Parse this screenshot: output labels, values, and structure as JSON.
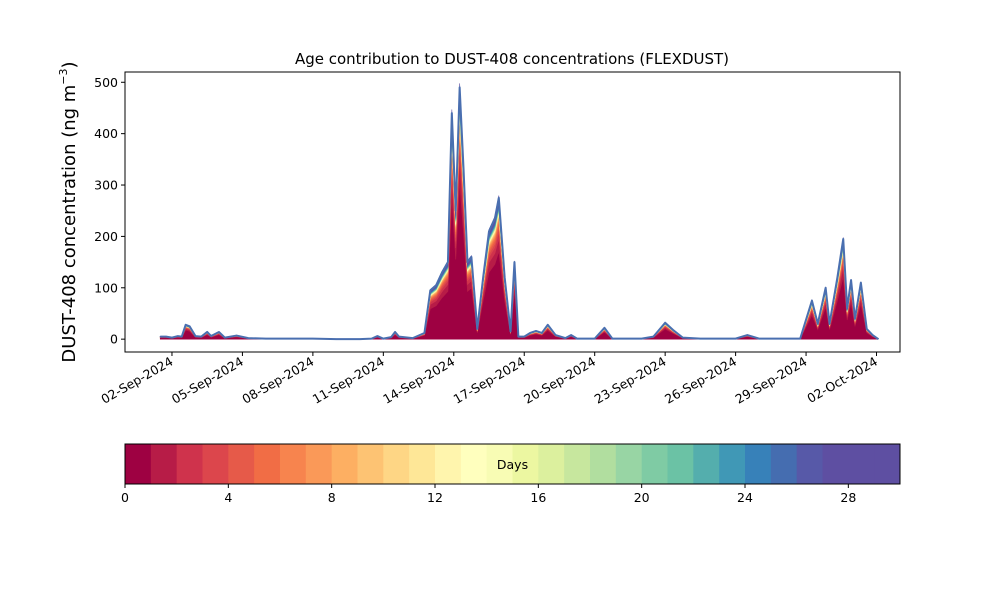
{
  "chart_data": {
    "type": "area",
    "stacked": true,
    "title": "Age contribution to DUST-408 concentrations (FLEXDUST)",
    "ylabel_main": "DUST-408 concentration (ng m",
    "ylabel_sup": "−3",
    "ylabel_close": ")",
    "xlabel": "",
    "x_start": "2024-08-31",
    "x_end": "2024-10-03",
    "ylim": [
      -25,
      520
    ],
    "yticks": [
      0,
      100,
      200,
      300,
      400,
      500
    ],
    "xticks": [
      {
        "date": "2024-09-02",
        "label": "02-Sep-2024"
      },
      {
        "date": "2024-09-05",
        "label": "05-Sep-2024"
      },
      {
        "date": "2024-09-08",
        "label": "08-Sep-2024"
      },
      {
        "date": "2024-09-11",
        "label": "11-Sep-2024"
      },
      {
        "date": "2024-09-14",
        "label": "14-Sep-2024"
      },
      {
        "date": "2024-09-17",
        "label": "17-Sep-2024"
      },
      {
        "date": "2024-09-20",
        "label": "20-Sep-2024"
      },
      {
        "date": "2024-09-23",
        "label": "23-Sep-2024"
      },
      {
        "date": "2024-09-26",
        "label": "26-Sep-2024"
      },
      {
        "date": "2024-09-29",
        "label": "29-Sep-2024"
      },
      {
        "date": "2024-10-02",
        "label": "02-Oct-2024"
      }
    ],
    "total": {
      "name": "Total",
      "points": [
        [
          "2024-09-01T12:00",
          5
        ],
        [
          "2024-09-01T18:00",
          5
        ],
        [
          "2024-09-02T00:00",
          3
        ],
        [
          "2024-09-02T06:00",
          6
        ],
        [
          "2024-09-02T10:00",
          5
        ],
        [
          "2024-09-02T14:00",
          28
        ],
        [
          "2024-09-02T18:00",
          25
        ],
        [
          "2024-09-03T00:00",
          6
        ],
        [
          "2024-09-03T06:00",
          5
        ],
        [
          "2024-09-03T12:00",
          14
        ],
        [
          "2024-09-03T16:00",
          6
        ],
        [
          "2024-09-04T00:00",
          14
        ],
        [
          "2024-09-04T06:00",
          3
        ],
        [
          "2024-09-04T18:00",
          7
        ],
        [
          "2024-09-05T06:00",
          2
        ],
        [
          "2024-09-06T00:00",
          1
        ],
        [
          "2024-09-08T00:00",
          1
        ],
        [
          "2024-09-09T00:00",
          0
        ],
        [
          "2024-09-10T00:00",
          0
        ],
        [
          "2024-09-10T12:00",
          1
        ],
        [
          "2024-09-10T18:00",
          6
        ],
        [
          "2024-09-11T00:00",
          1
        ],
        [
          "2024-09-11T08:00",
          4
        ],
        [
          "2024-09-11T12:00",
          14
        ],
        [
          "2024-09-11T16:00",
          5
        ],
        [
          "2024-09-12T06:00",
          2
        ],
        [
          "2024-09-12T18:00",
          12
        ],
        [
          "2024-09-13T00:00",
          95
        ],
        [
          "2024-09-13T06:00",
          105
        ],
        [
          "2024-09-13T12:00",
          130
        ],
        [
          "2024-09-13T18:00",
          150
        ],
        [
          "2024-09-13T22:00",
          440
        ],
        [
          "2024-09-14T02:00",
          250
        ],
        [
          "2024-09-14T06:00",
          490
        ],
        [
          "2024-09-14T10:00",
          330
        ],
        [
          "2024-09-14T14:00",
          150
        ],
        [
          "2024-09-14T18:00",
          160
        ],
        [
          "2024-09-15T00:00",
          20
        ],
        [
          "2024-09-15T06:00",
          120
        ],
        [
          "2024-09-15T12:00",
          210
        ],
        [
          "2024-09-15T18:00",
          235
        ],
        [
          "2024-09-15T22:00",
          275
        ],
        [
          "2024-09-16T04:00",
          120
        ],
        [
          "2024-09-16T10:00",
          15
        ],
        [
          "2024-09-16T14:00",
          150
        ],
        [
          "2024-09-16T18:00",
          5
        ],
        [
          "2024-09-17T00:00",
          5
        ],
        [
          "2024-09-17T06:00",
          12
        ],
        [
          "2024-09-17T12:00",
          16
        ],
        [
          "2024-09-17T18:00",
          12
        ],
        [
          "2024-09-18T00:00",
          28
        ],
        [
          "2024-09-18T08:00",
          8
        ],
        [
          "2024-09-18T18:00",
          2
        ],
        [
          "2024-09-19T00:00",
          8
        ],
        [
          "2024-09-19T06:00",
          1
        ],
        [
          "2024-09-20T00:00",
          1
        ],
        [
          "2024-09-20T10:00",
          22
        ],
        [
          "2024-09-20T18:00",
          1
        ],
        [
          "2024-09-22T00:00",
          1
        ],
        [
          "2024-09-22T12:00",
          5
        ],
        [
          "2024-09-23T00:00",
          32
        ],
        [
          "2024-09-23T08:00",
          18
        ],
        [
          "2024-09-23T18:00",
          3
        ],
        [
          "2024-09-24T12:00",
          1
        ],
        [
          "2024-09-26T00:00",
          1
        ],
        [
          "2024-09-26T12:00",
          8
        ],
        [
          "2024-09-27T00:00",
          1
        ],
        [
          "2024-09-28T18:00",
          1
        ],
        [
          "2024-09-29T06:00",
          75
        ],
        [
          "2024-09-29T12:00",
          30
        ],
        [
          "2024-09-29T20:00",
          100
        ],
        [
          "2024-09-30T00:00",
          30
        ],
        [
          "2024-09-30T08:00",
          120
        ],
        [
          "2024-09-30T14:00",
          195
        ],
        [
          "2024-09-30T18:00",
          60
        ],
        [
          "2024-09-30T22:00",
          115
        ],
        [
          "2024-10-01T02:00",
          40
        ],
        [
          "2024-10-01T08:00",
          110
        ],
        [
          "2024-10-01T14:00",
          20
        ],
        [
          "2024-10-01T20:00",
          8
        ],
        [
          "2024-10-02T02:00",
          0
        ]
      ]
    },
    "age_fractions": [
      0.62,
      0.09,
      0.05,
      0.03,
      0.025,
      0.02,
      0.016,
      0.012,
      0.01,
      0.008,
      0.006,
      0.005,
      0.004,
      0.004,
      0.004,
      0.004,
      0.004,
      0.004,
      0.004,
      0.004,
      0.004,
      0.005,
      0.005,
      0.006,
      0.007,
      0.008,
      0.01,
      0.012,
      0.015,
      0.02
    ],
    "colorbar": {
      "label": "Days",
      "vmin": 0,
      "vmax": 30,
      "ticks": [
        0,
        4,
        8,
        12,
        16,
        20,
        24,
        28
      ],
      "colors": [
        "#9e0142",
        "#b71c47",
        "#cf334c",
        "#dc464c",
        "#e65a49",
        "#f16d45",
        "#f7844e",
        "#fa9958",
        "#fdaf62",
        "#fdc373",
        "#fed685",
        "#fee797",
        "#fff5ad",
        "#ffffbe",
        "#f8fcb4",
        "#ecf7a1",
        "#dcf09e",
        "#c7e79e",
        "#b1de9f",
        "#98d5a4",
        "#7fcba4",
        "#6bc2a5",
        "#54aead",
        "#4098b6",
        "#3781b9",
        "#456db0",
        "#5759a8",
        "#5e4fa2",
        "#5e4fa2",
        "#5e4fa2"
      ]
    }
  }
}
